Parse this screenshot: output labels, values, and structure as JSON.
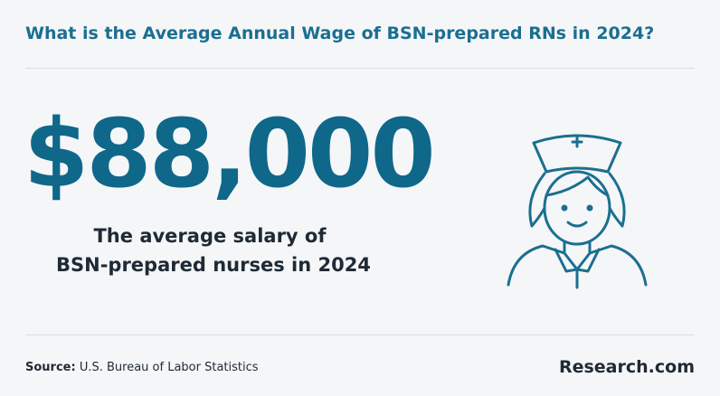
{
  "header": {
    "title": "What is the Average Annual Wage of BSN-prepared RNs in 2024?"
  },
  "stat": {
    "value": "$88,000",
    "caption": [
      "The average salary of",
      "BSN-prepared nurses in 2024"
    ]
  },
  "footer": {
    "source_label": "Source:",
    "source_text": "U.S. Bureau of Labor Statistics",
    "brand": "Research.com"
  }
}
